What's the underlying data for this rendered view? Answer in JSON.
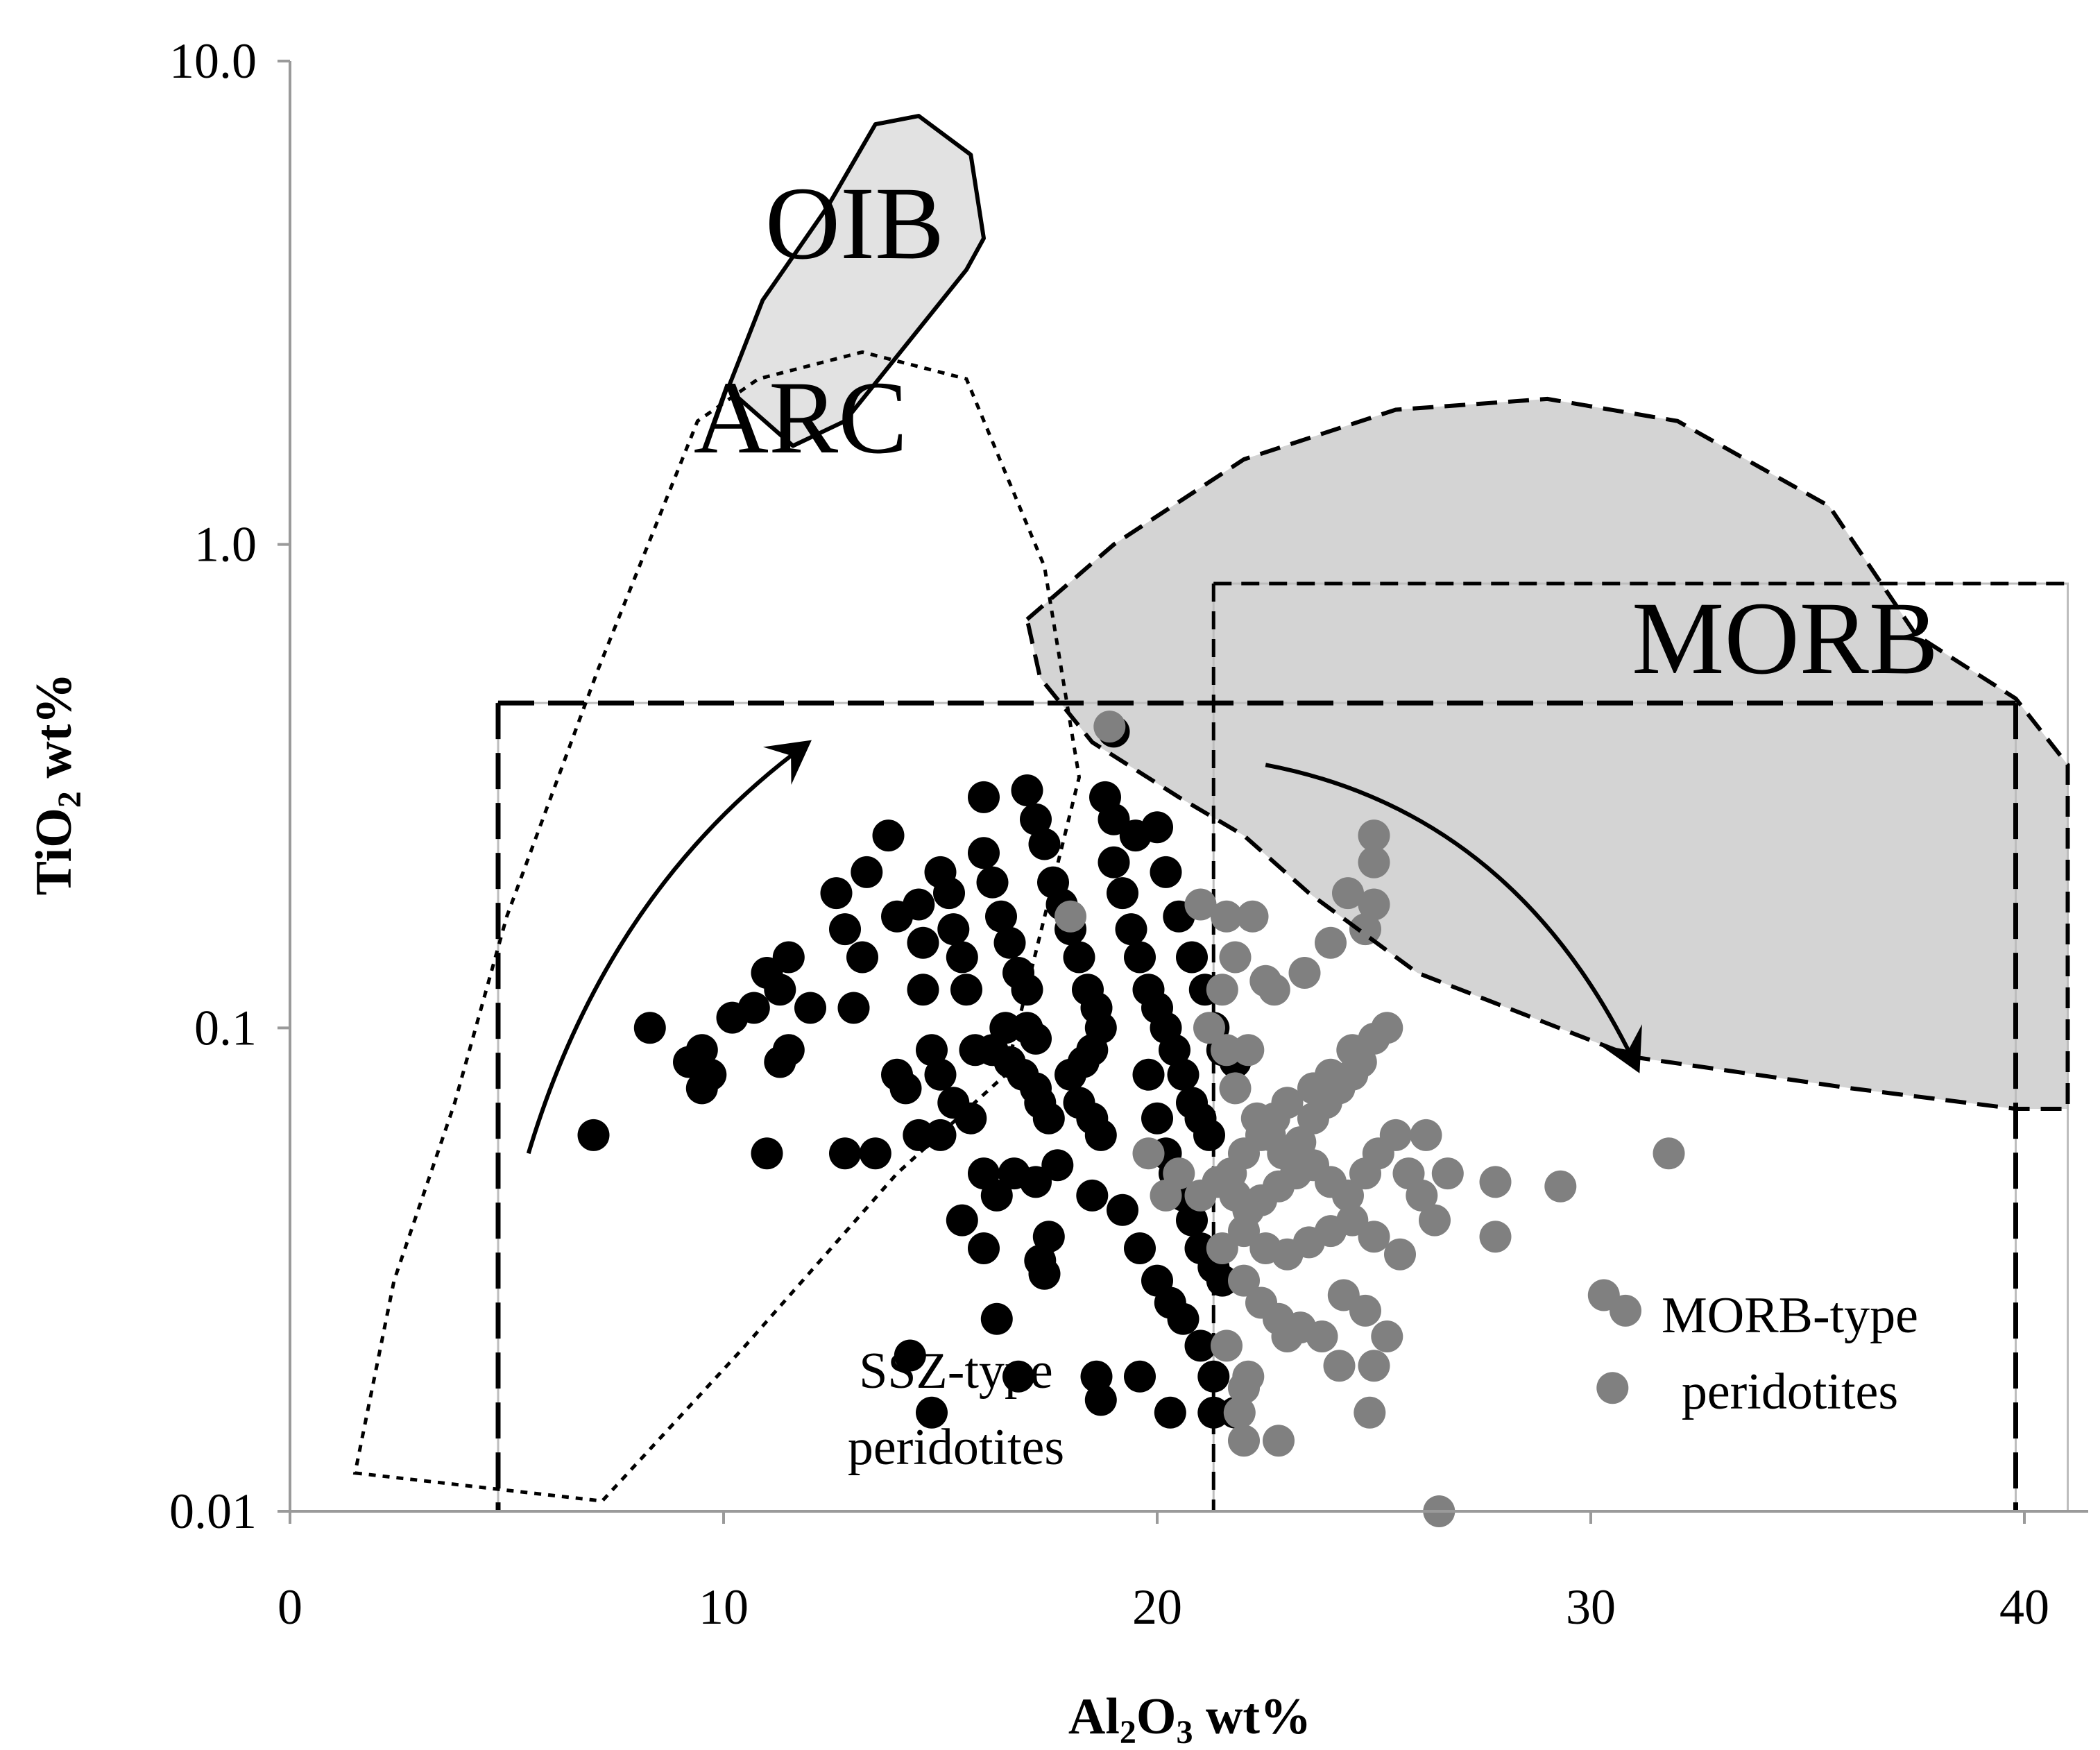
{
  "chart_data": {
    "type": "scatter",
    "title": "",
    "xlabel": {
      "main": "Al",
      "sub1": "2",
      "mid": "O",
      "sub2": "3",
      "rest": " wt%"
    },
    "ylabel": {
      "main": "TiO",
      "sub": "2",
      "rest": " wt%"
    },
    "xlim": [
      0,
      41
    ],
    "ylim": [
      0.01,
      10
    ],
    "yscale": "log",
    "x_ticks": [
      0,
      10,
      20,
      30,
      40
    ],
    "x_tick_labels": [
      "0",
      "10",
      "20",
      "30",
      "40"
    ],
    "y_ticks": [
      0.01,
      0.1,
      1,
      10
    ],
    "y_tick_labels": [
      "0.01",
      "0.1",
      "1.0",
      "10.0"
    ],
    "regions": {
      "oib": {
        "label": "OIB",
        "style": "solid-filled",
        "points": [
          [
            10.1,
            2.1
          ],
          [
            11.6,
            1.6
          ],
          [
            12.8,
            1.8
          ],
          [
            15.6,
            3.7
          ],
          [
            16.0,
            4.3
          ],
          [
            15.7,
            6.4
          ],
          [
            14.5,
            7.7
          ],
          [
            13.5,
            7.4
          ],
          [
            12.4,
            5.0
          ],
          [
            10.9,
            3.2
          ]
        ]
      },
      "arc": {
        "label": "ARC",
        "style": "dotted",
        "points": [
          [
            1.5,
            0.012
          ],
          [
            7.2,
            0.0105
          ],
          [
            10.5,
            0.022
          ],
          [
            14.0,
            0.05
          ],
          [
            16.5,
            0.08
          ],
          [
            18.2,
            0.33
          ],
          [
            17.4,
            0.9
          ],
          [
            15.6,
            2.2
          ],
          [
            13.2,
            2.5
          ],
          [
            10.8,
            2.2
          ],
          [
            9.4,
            1.8
          ],
          [
            7.1,
            0.55
          ],
          [
            5.0,
            0.17
          ],
          [
            3.8,
            0.07
          ],
          [
            2.4,
            0.03
          ]
        ]
      },
      "morb": {
        "label": "MORB",
        "style": "dashed-filled",
        "points": [
          [
            17.0,
            0.7
          ],
          [
            19.0,
            1.0
          ],
          [
            22.0,
            1.5
          ],
          [
            25.5,
            1.9
          ],
          [
            29.0,
            2.0
          ],
          [
            32.0,
            1.8
          ],
          [
            35.5,
            1.2
          ],
          [
            37.5,
            0.65
          ],
          [
            39.8,
            0.48
          ],
          [
            41.0,
            0.35
          ],
          [
            41.0,
            0.068
          ],
          [
            39.8,
            0.068
          ],
          [
            36.0,
            0.075
          ],
          [
            31.0,
            0.087
          ],
          [
            26.0,
            0.13
          ],
          [
            23.5,
            0.19
          ],
          [
            22.0,
            0.25
          ],
          [
            20.5,
            0.3
          ],
          [
            18.5,
            0.39
          ],
          [
            17.3,
            0.53
          ]
        ]
      }
    },
    "boxes": [
      {
        "name": "ssz-box",
        "x": [
          4.8,
          39.8
        ],
        "y": [
          0.01,
          0.47
        ],
        "style": "dashed-heavy"
      },
      {
        "name": "morb-type-box",
        "x": [
          21.3,
          41.0
        ],
        "y": [
          0.01,
          0.83
        ],
        "style": "dashed-medium"
      }
    ],
    "field_labels": {
      "ssz_line1": "SSZ-type",
      "ssz_line2": "peridotites",
      "morb_line1": "MORB-type",
      "morb_line2": "peridotites"
    },
    "arrows": [
      {
        "name": "ssz-trend-arrow",
        "points": [
          [
            5.5,
            0.055
          ],
          [
            7.3,
            0.19
          ],
          [
            11.8,
            0.38
          ]
        ]
      },
      {
        "name": "morb-trend-arrow",
        "points": [
          [
            22.5,
            0.35
          ],
          [
            28.2,
            0.28
          ],
          [
            31.0,
            0.085
          ]
        ]
      }
    ],
    "series": [
      {
        "name": "SSZ-type peridotites",
        "color": "#000000",
        "points": [
          [
            7.0,
            0.06
          ],
          [
            8.3,
            0.1
          ],
          [
            9.2,
            0.085
          ],
          [
            9.5,
            0.09
          ],
          [
            9.5,
            0.075
          ],
          [
            9.7,
            0.08
          ],
          [
            10.2,
            0.105
          ],
          [
            10.7,
            0.11
          ],
          [
            11.0,
            0.13
          ],
          [
            11.3,
            0.12
          ],
          [
            11.5,
            0.14
          ],
          [
            11.3,
            0.085
          ],
          [
            11.5,
            0.09
          ],
          [
            12.0,
            0.11
          ],
          [
            12.6,
            0.19
          ],
          [
            12.8,
            0.16
          ],
          [
            13.2,
            0.14
          ],
          [
            13.0,
            0.11
          ],
          [
            13.3,
            0.21
          ],
          [
            13.8,
            0.25
          ],
          [
            14.0,
            0.17
          ],
          [
            14.0,
            0.08
          ],
          [
            14.2,
            0.075
          ],
          [
            14.5,
            0.18
          ],
          [
            14.6,
            0.15
          ],
          [
            14.6,
            0.12
          ],
          [
            14.8,
            0.09
          ],
          [
            15.0,
            0.21
          ],
          [
            15.2,
            0.19
          ],
          [
            15.3,
            0.16
          ],
          [
            15.5,
            0.14
          ],
          [
            15.6,
            0.12
          ],
          [
            15.8,
            0.09
          ],
          [
            15.0,
            0.08
          ],
          [
            15.3,
            0.07
          ],
          [
            15.7,
            0.065
          ],
          [
            16.0,
            0.3
          ],
          [
            16.0,
            0.23
          ],
          [
            16.2,
            0.2
          ],
          [
            16.4,
            0.17
          ],
          [
            16.6,
            0.15
          ],
          [
            16.8,
            0.13
          ],
          [
            17.0,
            0.12
          ],
          [
            17.0,
            0.1
          ],
          [
            16.5,
            0.1
          ],
          [
            16.2,
            0.09
          ],
          [
            16.6,
            0.085
          ],
          [
            16.9,
            0.08
          ],
          [
            17.2,
            0.095
          ],
          [
            17.2,
            0.075
          ],
          [
            17.3,
            0.07
          ],
          [
            17.5,
            0.065
          ],
          [
            17.0,
            0.31
          ],
          [
            17.2,
            0.27
          ],
          [
            17.4,
            0.24
          ],
          [
            17.6,
            0.2
          ],
          [
            17.8,
            0.18
          ],
          [
            18.0,
            0.16
          ],
          [
            18.2,
            0.14
          ],
          [
            18.4,
            0.12
          ],
          [
            18.6,
            0.11
          ],
          [
            18.7,
            0.1
          ],
          [
            18.5,
            0.09
          ],
          [
            18.3,
            0.085
          ],
          [
            18.0,
            0.08
          ],
          [
            18.2,
            0.07
          ],
          [
            18.5,
            0.065
          ],
          [
            18.7,
            0.06
          ],
          [
            18.8,
            0.3
          ],
          [
            19.0,
            0.27
          ],
          [
            19.0,
            0.22
          ],
          [
            19.2,
            0.19
          ],
          [
            19.4,
            0.16
          ],
          [
            19.6,
            0.14
          ],
          [
            19.8,
            0.12
          ],
          [
            20.0,
            0.11
          ],
          [
            20.2,
            0.1
          ],
          [
            20.4,
            0.09
          ],
          [
            20.6,
            0.08
          ],
          [
            20.8,
            0.07
          ],
          [
            21.0,
            0.065
          ],
          [
            21.2,
            0.06
          ],
          [
            19.0,
            0.41
          ],
          [
            19.5,
            0.25
          ],
          [
            20.0,
            0.26
          ],
          [
            20.2,
            0.21
          ],
          [
            20.5,
            0.17
          ],
          [
            20.8,
            0.14
          ],
          [
            21.1,
            0.12
          ],
          [
            21.3,
            0.1
          ],
          [
            21.5,
            0.09
          ],
          [
            21.8,
            0.085
          ],
          [
            19.8,
            0.08
          ],
          [
            20.0,
            0.065
          ],
          [
            20.2,
            0.055
          ],
          [
            20.4,
            0.05
          ],
          [
            20.6,
            0.045
          ],
          [
            20.8,
            0.04
          ],
          [
            21.0,
            0.035
          ],
          [
            21.3,
            0.032
          ],
          [
            21.5,
            0.03
          ],
          [
            16.0,
            0.05
          ],
          [
            16.3,
            0.045
          ],
          [
            16.7,
            0.05
          ],
          [
            17.2,
            0.048
          ],
          [
            17.7,
            0.052
          ],
          [
            18.5,
            0.045
          ],
          [
            19.2,
            0.042
          ],
          [
            19.6,
            0.035
          ],
          [
            20.0,
            0.03
          ],
          [
            20.3,
            0.027
          ],
          [
            20.6,
            0.025
          ],
          [
            21.0,
            0.022
          ],
          [
            21.3,
            0.019
          ],
          [
            15.5,
            0.04
          ],
          [
            17.5,
            0.037
          ],
          [
            17.3,
            0.033
          ],
          [
            17.4,
            0.031
          ],
          [
            16.0,
            0.035
          ],
          [
            16.3,
            0.025
          ],
          [
            14.3,
            0.021
          ],
          [
            14.8,
            0.016
          ],
          [
            16.8,
            0.019
          ],
          [
            18.6,
            0.019
          ],
          [
            18.7,
            0.017
          ],
          [
            19.6,
            0.019
          ],
          [
            20.3,
            0.016
          ],
          [
            21.3,
            0.016
          ],
          [
            21.8,
            0.016
          ],
          [
            13.5,
            0.055
          ],
          [
            12.8,
            0.055
          ],
          [
            11.0,
            0.055
          ],
          [
            14.5,
            0.06
          ],
          [
            15.0,
            0.06
          ]
        ]
      },
      {
        "name": "MORB-type peridotites",
        "color": "#808080",
        "points": [
          [
            18.0,
            0.17
          ],
          [
            18.9,
            0.42
          ],
          [
            21.0,
            0.18
          ],
          [
            21.6,
            0.17
          ],
          [
            22.2,
            0.17
          ],
          [
            21.6,
            0.09
          ],
          [
            22.1,
            0.09
          ],
          [
            21.8,
            0.075
          ],
          [
            22.3,
            0.065
          ],
          [
            22.6,
            0.06
          ],
          [
            22.9,
            0.055
          ],
          [
            23.3,
            0.058
          ],
          [
            23.6,
            0.065
          ],
          [
            23.9,
            0.07
          ],
          [
            24.2,
            0.075
          ],
          [
            24.5,
            0.08
          ],
          [
            24.7,
            0.085
          ],
          [
            25.0,
            0.095
          ],
          [
            25.3,
            0.1
          ],
          [
            24.5,
            0.09
          ],
          [
            24.0,
            0.08
          ],
          [
            23.6,
            0.075
          ],
          [
            23.0,
            0.07
          ],
          [
            22.7,
            0.065
          ],
          [
            22.4,
            0.06
          ],
          [
            22.0,
            0.055
          ],
          [
            21.7,
            0.05
          ],
          [
            21.4,
            0.048
          ],
          [
            21.8,
            0.045
          ],
          [
            22.1,
            0.042
          ],
          [
            22.4,
            0.044
          ],
          [
            22.8,
            0.047
          ],
          [
            23.2,
            0.05
          ],
          [
            23.6,
            0.052
          ],
          [
            24.0,
            0.048
          ],
          [
            24.4,
            0.045
          ],
          [
            24.8,
            0.05
          ],
          [
            25.1,
            0.055
          ],
          [
            25.5,
            0.06
          ],
          [
            25.8,
            0.05
          ],
          [
            26.1,
            0.045
          ],
          [
            26.4,
            0.04
          ],
          [
            22.0,
            0.038
          ],
          [
            22.5,
            0.035
          ],
          [
            23.0,
            0.034
          ],
          [
            23.5,
            0.036
          ],
          [
            24.0,
            0.038
          ],
          [
            24.5,
            0.04
          ],
          [
            25.0,
            0.037
          ],
          [
            25.6,
            0.034
          ],
          [
            22.0,
            0.03
          ],
          [
            22.4,
            0.027
          ],
          [
            22.8,
            0.025
          ],
          [
            23.3,
            0.024
          ],
          [
            23.8,
            0.023
          ],
          [
            24.3,
            0.028
          ],
          [
            24.8,
            0.026
          ],
          [
            25.3,
            0.023
          ],
          [
            21.6,
            0.022
          ],
          [
            22.1,
            0.019
          ],
          [
            23.0,
            0.023
          ],
          [
            24.2,
            0.02
          ],
          [
            25.0,
            0.02
          ],
          [
            26.2,
            0.06
          ],
          [
            26.7,
            0.05
          ],
          [
            27.8,
            0.048
          ],
          [
            29.3,
            0.047
          ],
          [
            31.8,
            0.055
          ],
          [
            27.8,
            0.037
          ],
          [
            30.3,
            0.028
          ],
          [
            30.8,
            0.026
          ],
          [
            30.5,
            0.018
          ],
          [
            25.0,
            0.25
          ],
          [
            25.0,
            0.22
          ],
          [
            24.4,
            0.19
          ],
          [
            25.0,
            0.18
          ],
          [
            24.8,
            0.16
          ],
          [
            21.8,
            0.14
          ],
          [
            22.5,
            0.125
          ],
          [
            23.4,
            0.13
          ],
          [
            24.0,
            0.15
          ],
          [
            21.5,
            0.12
          ],
          [
            21.2,
            0.1
          ],
          [
            22.7,
            0.12
          ],
          [
            22.0,
            0.018
          ],
          [
            21.9,
            0.016
          ],
          [
            22.0,
            0.014
          ],
          [
            22.8,
            0.014
          ],
          [
            24.9,
            0.016
          ],
          [
            26.5,
            0.01
          ],
          [
            20.5,
            0.05
          ],
          [
            21.0,
            0.045
          ],
          [
            20.2,
            0.045
          ],
          [
            21.5,
            0.035
          ],
          [
            19.8,
            0.055
          ]
        ]
      }
    ]
  }
}
